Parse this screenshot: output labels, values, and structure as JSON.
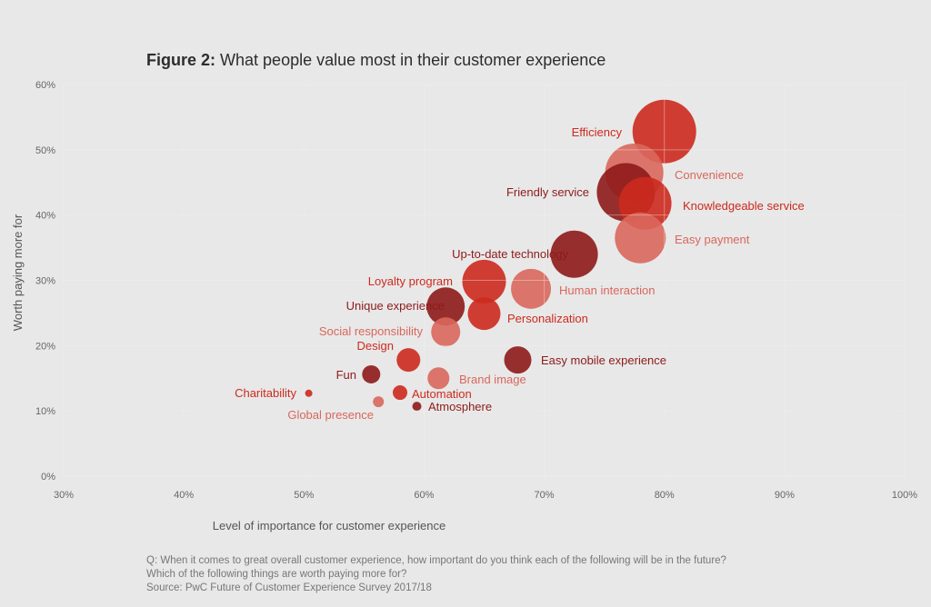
{
  "chart_data": {
    "type": "scatter",
    "title_prefix": "Figure 2:",
    "title": "What people value most in their customer experience",
    "xlabel": "Level of importance for customer experience",
    "ylabel": "Worth paying more for",
    "xlim": [
      30,
      100
    ],
    "ylim": [
      0,
      60
    ],
    "x_ticks": [
      "30%",
      "40%",
      "50%",
      "60%",
      "70%",
      "80%",
      "90%",
      "100%"
    ],
    "y_ticks": [
      "0%",
      "10%",
      "20%",
      "30%",
      "40%",
      "50%",
      "60%"
    ],
    "grid": true,
    "colors": {
      "red": "#cc2a1e",
      "dark": "#8e1a1a",
      "salmon": "#d9675c"
    },
    "points": [
      {
        "label": "Efficiency",
        "x": 80.0,
        "y": 52.8,
        "bubble_size": 35,
        "color": "red"
      },
      {
        "label": "Convenience",
        "x": 77.5,
        "y": 46.5,
        "bubble_size": 32,
        "color": "salmon"
      },
      {
        "label": "Friendly service",
        "x": 76.8,
        "y": 43.5,
        "bubble_size": 32,
        "color": "dark"
      },
      {
        "label": "Knowledgeable service",
        "x": 78.4,
        "y": 41.8,
        "bubble_size": 29,
        "color": "red"
      },
      {
        "label": "Easy payment",
        "x": 78.0,
        "y": 36.5,
        "bubble_size": 28,
        "color": "salmon"
      },
      {
        "label": "Up-to-date technology",
        "x": 72.5,
        "y": 34.0,
        "bubble_size": 26,
        "color": "dark"
      },
      {
        "label": "Human interaction",
        "x": 68.9,
        "y": 28.7,
        "bubble_size": 22,
        "color": "salmon"
      },
      {
        "label": "Loyalty program",
        "x": 65.0,
        "y": 29.8,
        "bubble_size": 24,
        "color": "red"
      },
      {
        "label": "Personalization",
        "x": 65.0,
        "y": 24.9,
        "bubble_size": 18,
        "color": "red"
      },
      {
        "label": "Unique experience",
        "x": 61.8,
        "y": 26.0,
        "bubble_size": 21,
        "color": "dark"
      },
      {
        "label": "Social responsibility",
        "x": 61.8,
        "y": 22.1,
        "bubble_size": 16,
        "color": "salmon"
      },
      {
        "label": "Design",
        "x": 58.7,
        "y": 17.8,
        "bubble_size": 13,
        "color": "red"
      },
      {
        "label": "Easy mobile experience",
        "x": 67.8,
        "y": 17.8,
        "bubble_size": 15,
        "color": "dark"
      },
      {
        "label": "Brand image",
        "x": 61.2,
        "y": 15.0,
        "bubble_size": 12,
        "color": "salmon"
      },
      {
        "label": "Fun",
        "x": 55.6,
        "y": 15.6,
        "bubble_size": 10,
        "color": "dark"
      },
      {
        "label": "Automation",
        "x": 58.0,
        "y": 12.8,
        "bubble_size": 8,
        "color": "red"
      },
      {
        "label": "Charitability",
        "x": 50.4,
        "y": 12.7,
        "bubble_size": 4,
        "color": "red"
      },
      {
        "label": "Global presence",
        "x": 56.2,
        "y": 11.4,
        "bubble_size": 6,
        "color": "salmon"
      },
      {
        "label": "Atmosphere",
        "x": 59.4,
        "y": 10.7,
        "bubble_size": 5,
        "color": "dark"
      }
    ]
  },
  "notes": [
    "Q: When it comes to great overall customer experience, how important do you think each of the following will be in the future?",
    "Which of the following things are worth paying more for?",
    "Source: PwC Future of Customer Experience Survey 2017/18"
  ]
}
